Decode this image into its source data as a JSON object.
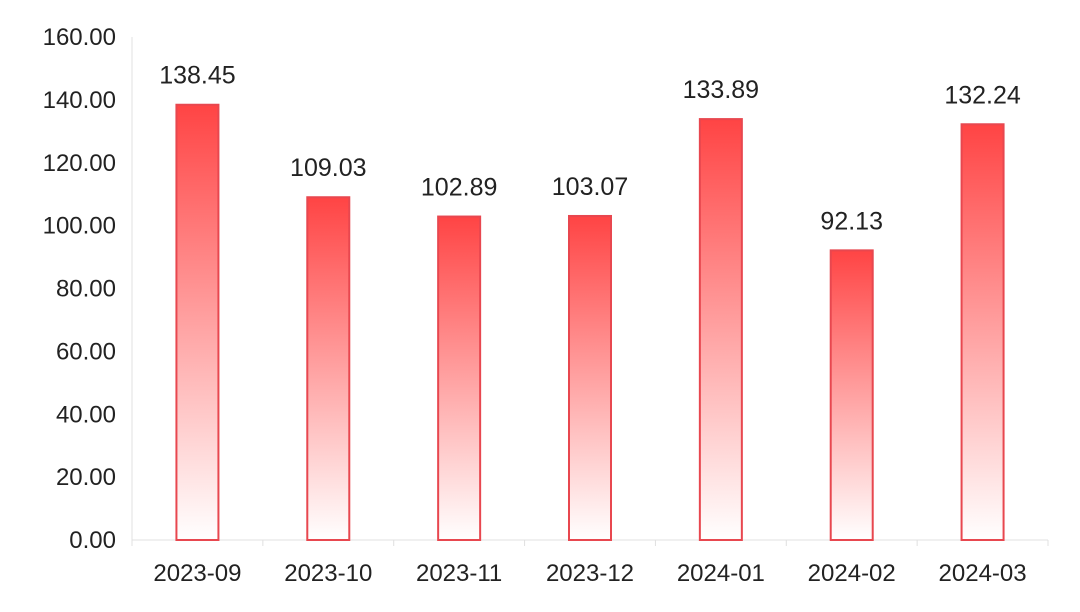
{
  "chart_data": {
    "type": "bar",
    "categories": [
      "2023-09",
      "2023-10",
      "2023-11",
      "2023-12",
      "2024-01",
      "2024-02",
      "2024-03"
    ],
    "values": [
      138.45,
      109.03,
      102.89,
      103.07,
      133.89,
      92.13,
      132.24
    ],
    "value_labels": [
      "138.45",
      "109.03",
      "102.89",
      "103.07",
      "133.89",
      "92.13",
      "132.24"
    ],
    "y_ticks": [
      "0.00",
      "20.00",
      "40.00",
      "60.00",
      "80.00",
      "100.00",
      "120.00",
      "140.00",
      "160.00"
    ],
    "title": "",
    "xlabel": "",
    "ylabel": "",
    "ylim": [
      0,
      160
    ],
    "grid": false,
    "legend": "none",
    "bar_color_top": "#ff4444",
    "bar_color_bottom": "#ffffff",
    "bar_outline": "#e8474f"
  }
}
